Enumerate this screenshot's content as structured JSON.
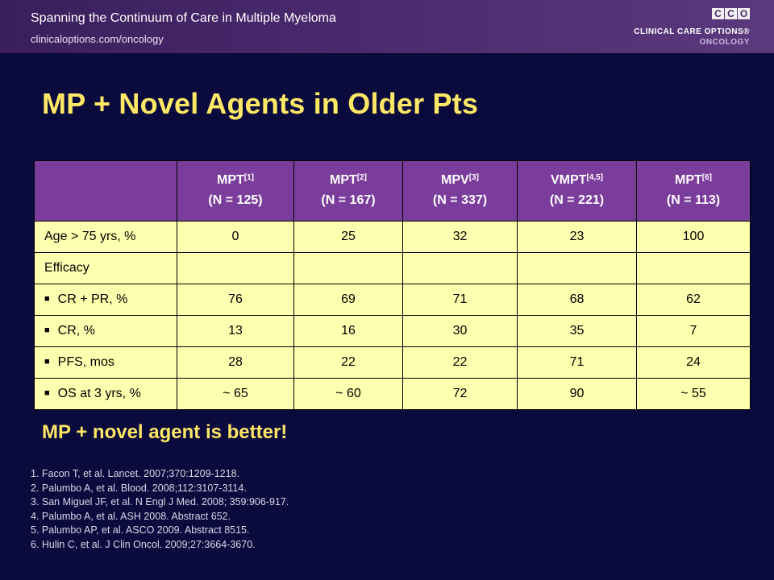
{
  "header": {
    "title": "Spanning the Continuum of Care in Multiple Myeloma",
    "url": "clinicaloptions.com/oncology"
  },
  "logo": {
    "letters": [
      "C",
      "C",
      "O"
    ],
    "line1": "CLINICAL CARE OPTIONS®",
    "line2": "ONCOLOGY"
  },
  "slide_title": "MP + Novel Agents in Older Pts",
  "table": {
    "columns": [
      {
        "name": "MPT",
        "ref": "[1]",
        "n": "(N = 125)"
      },
      {
        "name": "MPT",
        "ref": "[2]",
        "n": "(N = 167)"
      },
      {
        "name": "MPV",
        "ref": "[3]",
        "n": "(N = 337)"
      },
      {
        "name": "VMPT",
        "ref": "[4,5]",
        "n": "(N = 221)"
      },
      {
        "name": "MPT",
        "ref": "[6]",
        "n": "(N = 113)"
      }
    ],
    "rows": [
      {
        "label": "Age > 75 yrs, %",
        "bullet": false,
        "values": [
          "0",
          "25",
          "32",
          "23",
          "100"
        ]
      },
      {
        "label": "Efficacy",
        "bullet": false,
        "values": [
          "",
          "",
          "",
          "",
          ""
        ]
      },
      {
        "label": "CR + PR, %",
        "bullet": true,
        "values": [
          "76",
          "69",
          "71",
          "68",
          "62"
        ]
      },
      {
        "label": "CR, %",
        "bullet": true,
        "values": [
          "13",
          "16",
          "30",
          "35",
          "7"
        ]
      },
      {
        "label": "PFS, mos",
        "bullet": true,
        "values": [
          "28",
          "22",
          "22",
          "71",
          "24"
        ]
      },
      {
        "label": "OS at 3 yrs, %",
        "bullet": true,
        "values": [
          "~ 65",
          "~ 60",
          "72",
          "90",
          "~ 55"
        ]
      }
    ]
  },
  "conclusion": "MP + novel agent is better!",
  "references": [
    "1. Facon T, et al. Lancet. 2007;370:1209-1218.",
    "2. Palumbo A, et al. Blood. 2008;112:3107-3114.",
    "3. San Miguel JF, et al. N Engl J Med. 2008; 359:906-917.",
    "4. Palumbo A, et al. ASH 2008. Abstract 652.",
    "5. Palumbo AP, et al. ASCO 2009. Abstract 8515.",
    "6. Hulin C, et al. J Clin Oncol. 2009;27:3664-3670."
  ]
}
